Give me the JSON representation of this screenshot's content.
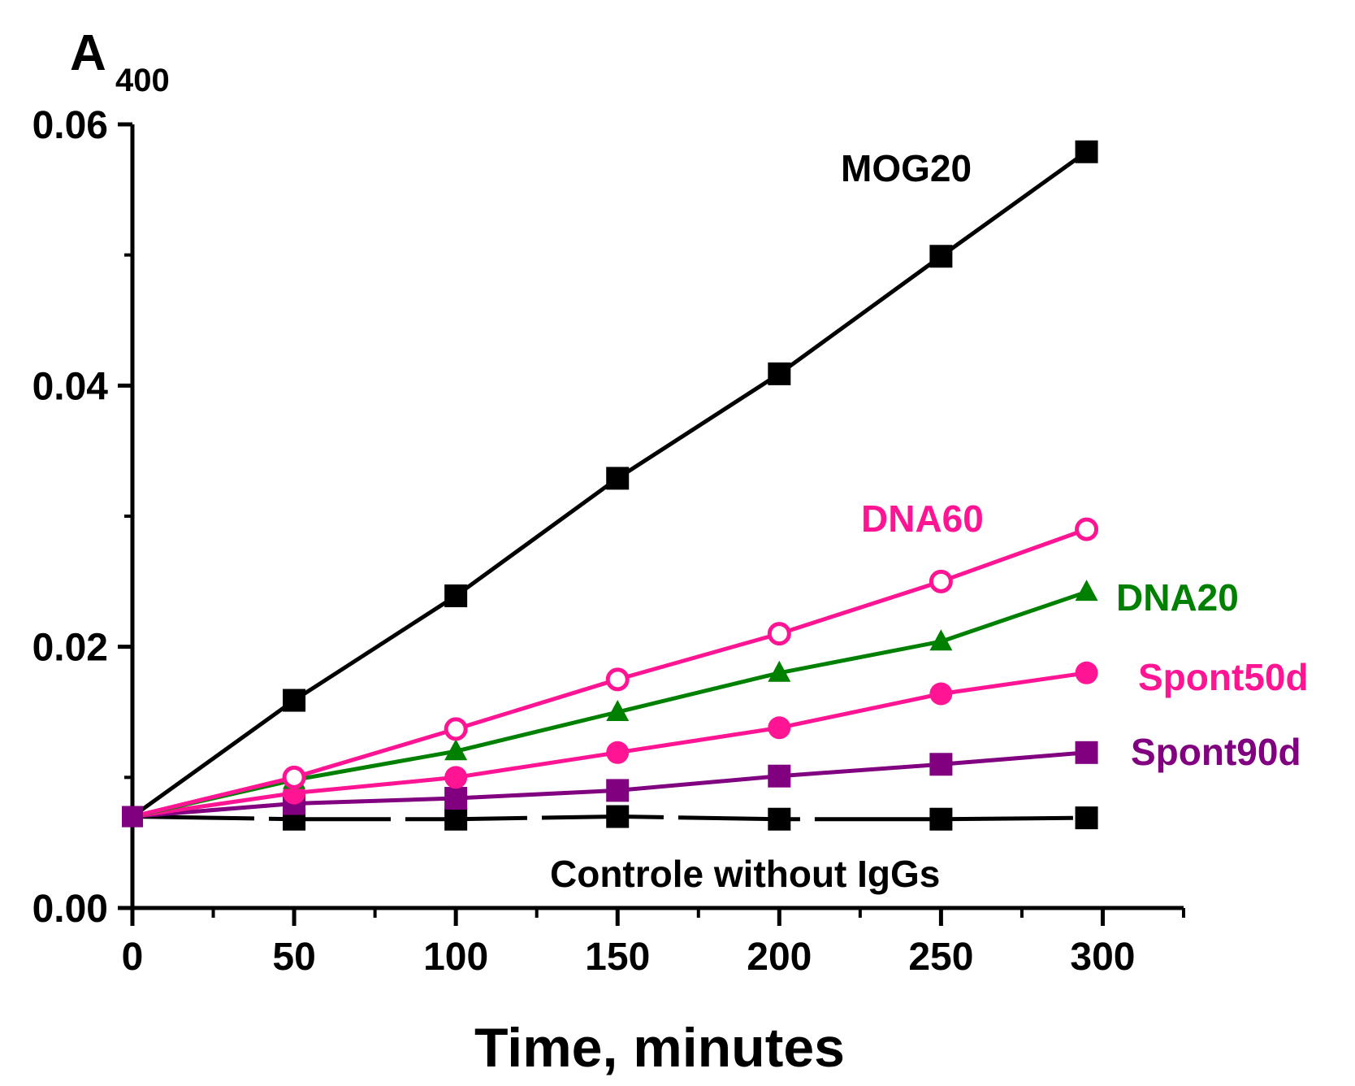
{
  "chart_data": {
    "type": "line",
    "title": "",
    "xlabel": "Time, minutes",
    "ylabel_main": "A",
    "ylabel_sub": "400",
    "xlim": [
      0,
      325
    ],
    "ylim": [
      0,
      0.06
    ],
    "x_ticks": [
      0,
      50,
      100,
      150,
      200,
      250,
      300
    ],
    "x_tick_labels": [
      "0",
      "50",
      "100",
      "150",
      "200",
      "250",
      "300"
    ],
    "x_minor_ticks": [
      25,
      75,
      125,
      175,
      225,
      275,
      325
    ],
    "y_ticks": [
      0,
      0.02,
      0.04,
      0.06
    ],
    "y_tick_labels": [
      "0.00",
      "0.02",
      "0.04",
      "0.06"
    ],
    "y_minor_ticks": [
      0.01,
      0.03,
      0.05
    ],
    "grid": false,
    "series": [
      {
        "name": "MOG20",
        "color": "#000000",
        "marker": "square",
        "line": "solid",
        "x": [
          0,
          50,
          100,
          150,
          200,
          250,
          295
        ],
        "values": [
          0.007,
          0.0159,
          0.0239,
          0.0329,
          0.0409,
          0.0499,
          0.0579
        ]
      },
      {
        "name": "DNA60",
        "color": "#ff1493",
        "marker": "circle-open",
        "line": "solid",
        "x": [
          0,
          50,
          100,
          150,
          200,
          250,
          295
        ],
        "values": [
          0.007,
          0.01,
          0.0137,
          0.0175,
          0.021,
          0.025,
          0.029
        ]
      },
      {
        "name": "DNA20",
        "color": "#008000",
        "marker": "triangle",
        "line": "solid",
        "x": [
          0,
          50,
          100,
          150,
          200,
          250,
          295
        ],
        "values": [
          0.007,
          0.0098,
          0.012,
          0.015,
          0.018,
          0.0204,
          0.0242
        ]
      },
      {
        "name": "Spont50d",
        "color": "#ff1493",
        "marker": "circle",
        "line": "solid",
        "x": [
          0,
          50,
          100,
          150,
          200,
          250,
          295
        ],
        "values": [
          0.007,
          0.0088,
          0.01,
          0.0119,
          0.0138,
          0.0164,
          0.018
        ]
      },
      {
        "name": "Spont90d",
        "color": "#800080",
        "marker": "square",
        "line": "solid",
        "x": [
          0,
          50,
          100,
          150,
          200,
          250,
          295
        ],
        "values": [
          0.007,
          0.008,
          0.0084,
          0.009,
          0.0101,
          0.011,
          0.0119
        ]
      },
      {
        "name": "Controle without IgGs",
        "color": "#000000",
        "marker": "square",
        "line": "dashed",
        "x": [
          0,
          50,
          100,
          150,
          200,
          250,
          295
        ],
        "values": [
          0.007,
          0.0068,
          0.0068,
          0.007,
          0.0068,
          0.0068,
          0.0069
        ]
      }
    ]
  }
}
